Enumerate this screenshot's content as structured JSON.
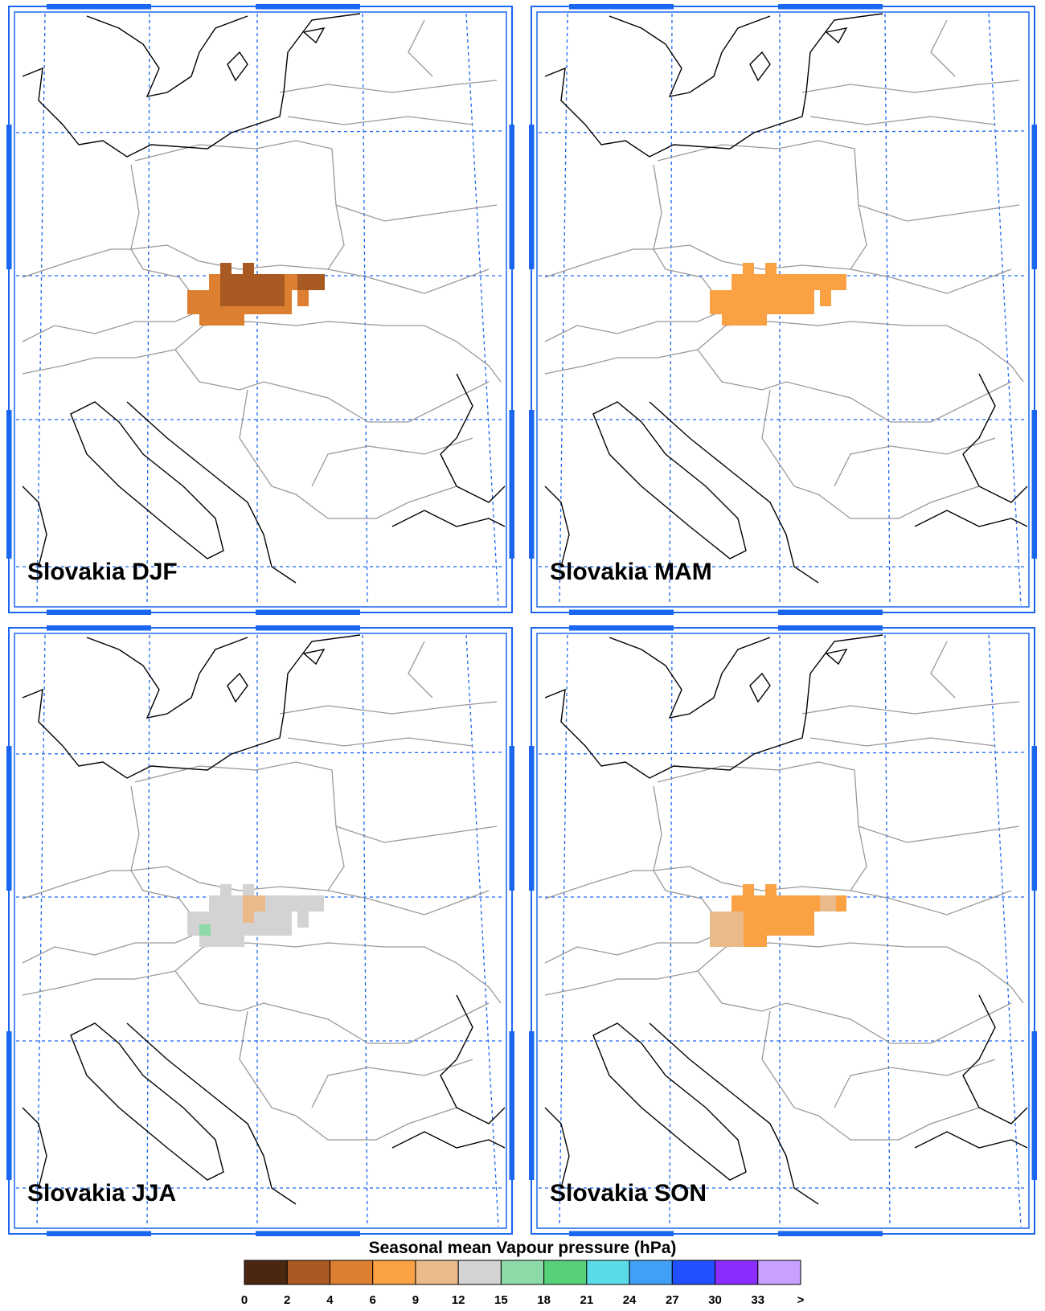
{
  "panels": [
    {
      "label": "Slovakia DJF"
    },
    {
      "label": "Slovakia MAM"
    },
    {
      "label": "Slovakia JJA"
    },
    {
      "label": "Slovakia SON"
    }
  ],
  "colorbar": {
    "title": "Seasonal mean Vapour pressure (hPa)",
    "ticks": [
      0,
      2,
      4,
      6,
      9,
      12,
      15,
      18,
      21,
      24,
      27,
      30,
      33,
      ">"
    ],
    "colors": [
      "#4a2810",
      "#a85a22",
      "#dc7f31",
      "#f9a143",
      "#ebba8a",
      "#d3d3d3",
      "#8ed9a8",
      "#56d17a",
      "#5bdbe8",
      "#40a0f5",
      "#2050ff",
      "#8a2cff",
      "#c8a0ff"
    ]
  }
}
